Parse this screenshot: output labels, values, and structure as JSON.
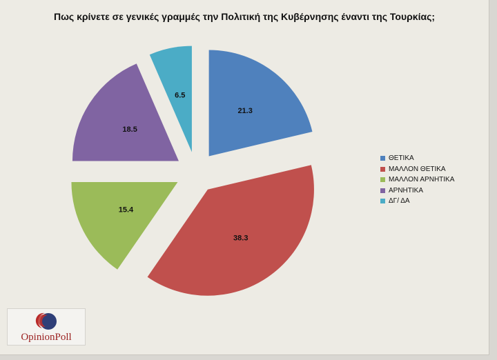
{
  "chart_data": {
    "type": "pie",
    "title": "Πως κρίνετε σε γενικές γραμμές την Πολιτική της Κυβέρνησης έναντι της Τουρκίας;",
    "categories": [
      "ΘΕΤΙΚΑ",
      "ΜΑΛΛΟΝ ΘΕΤΙΚΑ",
      "ΜΑΛΛΟΝ ΑΡΝΗΤΙΚΑ",
      "ΑΡΝΗΤΙΚΑ",
      "ΔΓ/ ΔΑ"
    ],
    "values": [
      21.3,
      38.3,
      15.4,
      18.5,
      6.5
    ],
    "labels": [
      "21.3",
      "38.3",
      "15.4",
      "18.5",
      "6.5"
    ],
    "colors": [
      "#4f81bd",
      "#c0504d",
      "#9bbb59",
      "#8064a2",
      "#4bacc6"
    ],
    "exploded": true,
    "legend_position": "right"
  },
  "logo": {
    "text": "OpinionPoll"
  }
}
